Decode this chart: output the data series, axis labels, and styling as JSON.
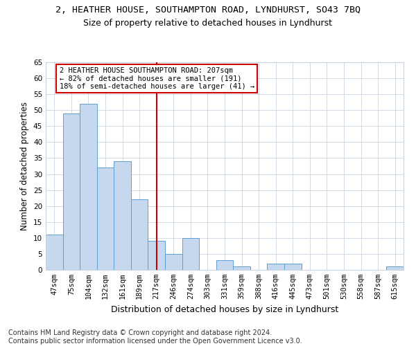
{
  "title": "2, HEATHER HOUSE, SOUTHAMPTON ROAD, LYNDHURST, SO43 7BQ",
  "subtitle": "Size of property relative to detached houses in Lyndhurst",
  "xlabel": "Distribution of detached houses by size in Lyndhurst",
  "ylabel": "Number of detached properties",
  "categories": [
    "47sqm",
    "75sqm",
    "104sqm",
    "132sqm",
    "161sqm",
    "189sqm",
    "217sqm",
    "246sqm",
    "274sqm",
    "303sqm",
    "331sqm",
    "359sqm",
    "388sqm",
    "416sqm",
    "445sqm",
    "473sqm",
    "501sqm",
    "530sqm",
    "558sqm",
    "587sqm",
    "615sqm"
  ],
  "values": [
    11,
    49,
    52,
    32,
    34,
    22,
    9,
    5,
    10,
    0,
    3,
    1,
    0,
    2,
    2,
    0,
    0,
    0,
    0,
    0,
    1
  ],
  "bar_color": "#c5d8ed",
  "bar_edge_color": "#5a9fd4",
  "vline_index": 6,
  "vline_color": "#cc0000",
  "annotation_text": "2 HEATHER HOUSE SOUTHAMPTON ROAD: 207sqm\n← 82% of detached houses are smaller (191)\n18% of semi-detached houses are larger (41) →",
  "annotation_box_color": "#ffffff",
  "annotation_box_edge": "#cc0000",
  "ylim": [
    0,
    65
  ],
  "yticks": [
    0,
    5,
    10,
    15,
    20,
    25,
    30,
    35,
    40,
    45,
    50,
    55,
    60,
    65
  ],
  "bg_color": "#ffffff",
  "grid_color": "#c8d4e0",
  "footer": "Contains HM Land Registry data © Crown copyright and database right 2024.\nContains public sector information licensed under the Open Government Licence v3.0.",
  "title_fontsize": 9.5,
  "subtitle_fontsize": 9,
  "xlabel_fontsize": 9,
  "ylabel_fontsize": 8.5,
  "tick_fontsize": 7.5,
  "footer_fontsize": 7,
  "annot_fontsize": 7.5
}
